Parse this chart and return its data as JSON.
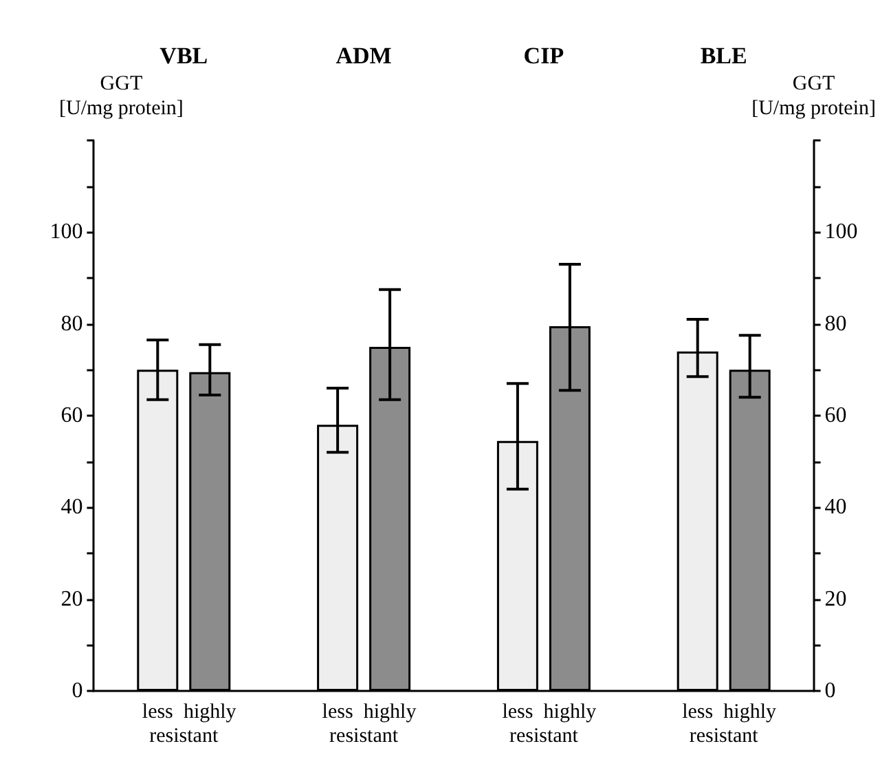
{
  "chart_data": {
    "type": "bar",
    "categories": [
      "VBL",
      "ADM",
      "CIP",
      "BLE"
    ],
    "ylabel": "GGT\n[U/mg protein]",
    "y2label": "GGT\n[U/mg protein]",
    "ylim": [
      0,
      120
    ],
    "yticks": [
      0,
      {
        "value": 10,
        "label": null
      },
      20,
      {
        "value": 30,
        "label": null
      },
      40,
      {
        "value": 50,
        "label": null
      },
      60,
      {
        "value": 70,
        "label": null
      },
      80,
      {
        "value": 90,
        "label": null
      },
      100,
      {
        "value": 110,
        "label": null
      },
      {
        "value": 120,
        "label": null
      }
    ],
    "y2lim": [
      0,
      120
    ],
    "y2ticks": [
      0,
      {
        "value": 10,
        "label": null
      },
      20,
      {
        "value": 30,
        "label": null
      },
      40,
      {
        "value": 50,
        "label": null
      },
      60,
      {
        "value": 70,
        "label": null
      },
      80,
      {
        "value": 90,
        "label": null
      },
      100,
      {
        "value": 110,
        "label": null
      },
      {
        "value": 120,
        "label": null
      }
    ],
    "series": [
      {
        "name": "less",
        "color": "#eeeeee",
        "values": [
          70,
          58,
          54.5,
          74
        ],
        "errors": [
          [
            63.5,
            76.5
          ],
          [
            52,
            66
          ],
          [
            44,
            67
          ],
          [
            68.5,
            81
          ]
        ]
      },
      {
        "name": "highly",
        "color": "#8c8c8c",
        "values": [
          69.5,
          75,
          79.5,
          70
        ],
        "errors": [
          [
            64.5,
            75.5
          ],
          [
            63.5,
            87.5
          ],
          [
            65.5,
            93
          ],
          [
            64,
            77.5
          ]
        ]
      }
    ],
    "annotations": [
      "resistant",
      "resistant",
      "resistant",
      "resistant"
    ],
    "grid": false,
    "legend": false
  }
}
